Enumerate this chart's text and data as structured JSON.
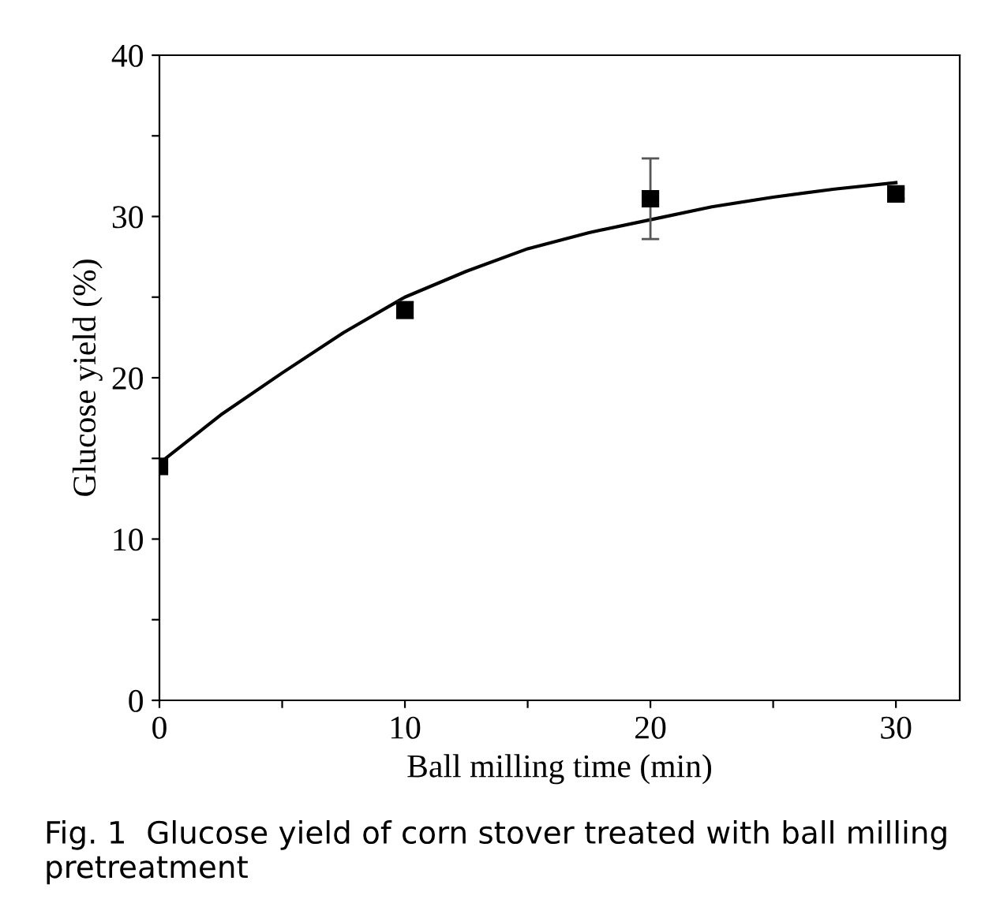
{
  "chart_data": {
    "type": "scatter",
    "xlabel": "Ball milling time (min)",
    "ylabel": "Glucose yield (%)",
    "xlim": [
      0,
      32.6
    ],
    "ylim": [
      0,
      40
    ],
    "xticks": [
      0,
      {
        "value": 5,
        "label": null
      },
      10,
      {
        "value": 15,
        "label": null
      },
      20,
      {
        "value": 25,
        "label": null
      },
      30
    ],
    "yticks": [
      0,
      {
        "value": 5,
        "label": null
      },
      10,
      {
        "value": 15,
        "label": null
      },
      20,
      {
        "value": 25,
        "label": null
      },
      30,
      {
        "value": 35,
        "label": null
      },
      40
    ],
    "grid": false,
    "legend": false,
    "series": [
      {
        "marker": "square",
        "color": "#000000",
        "x": [
          0,
          10,
          20,
          30
        ],
        "values": [
          14.5,
          24.2,
          31.1,
          31.4
        ],
        "errors": [
          0.2,
          0.5,
          2.5,
          0.3
        ]
      },
      {
        "type": "line",
        "marker": "none",
        "line_style": "solid",
        "color": "#000000",
        "x": [
          0,
          2.5,
          5,
          7.5,
          10,
          12.5,
          15,
          17.5,
          20,
          22.5,
          25,
          27.5,
          30
        ],
        "values": [
          14.7,
          17.7,
          20.3,
          22.8,
          25.0,
          26.6,
          28.0,
          29.0,
          29.8,
          30.6,
          31.2,
          31.7,
          32.1
        ]
      }
    ],
    "annotations": [
      "Fig. 1  Glucose yield of corn stover treated with ball milling pretreatment"
    ]
  }
}
